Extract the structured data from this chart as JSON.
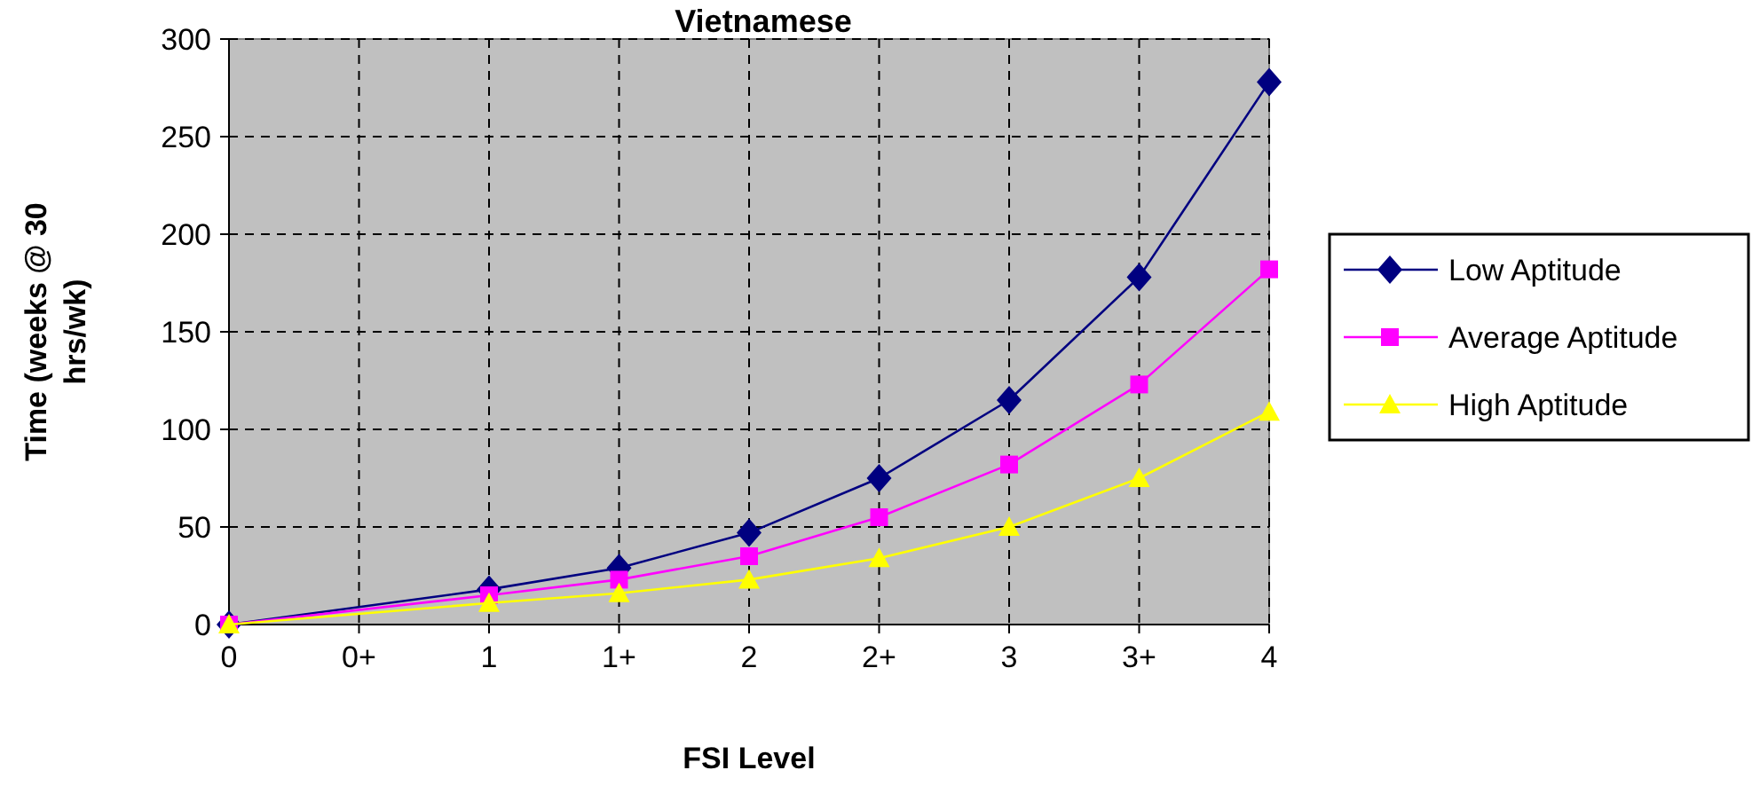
{
  "chart_data": {
    "type": "line",
    "title": "Vietnamese",
    "xlabel": "FSI Level",
    "ylabel": "Time (weeks @ 30 hrs/wk)",
    "categories": [
      "0",
      "0+",
      "1",
      "1+",
      "2",
      "2+",
      "3",
      "3+",
      "4"
    ],
    "series": [
      {
        "name": "Low Aptitude",
        "color": "#000080",
        "marker": "diamond",
        "values": [
          0,
          null,
          18,
          29,
          47,
          75,
          115,
          178,
          278
        ]
      },
      {
        "name": "Average Aptitude",
        "color": "#ff00ff",
        "marker": "square",
        "values": [
          0,
          null,
          15,
          23,
          35,
          55,
          82,
          123,
          182
        ]
      },
      {
        "name": "High Aptitude",
        "color": "#ffff00",
        "marker": "triangle",
        "values": [
          0,
          null,
          11,
          16,
          23,
          34,
          50,
          75,
          109
        ]
      }
    ],
    "ylim": [
      0,
      300
    ],
    "yticks": [
      0,
      50,
      100,
      150,
      200,
      250,
      300
    ],
    "grid": true,
    "legend": "right",
    "line_style": "solid"
  }
}
